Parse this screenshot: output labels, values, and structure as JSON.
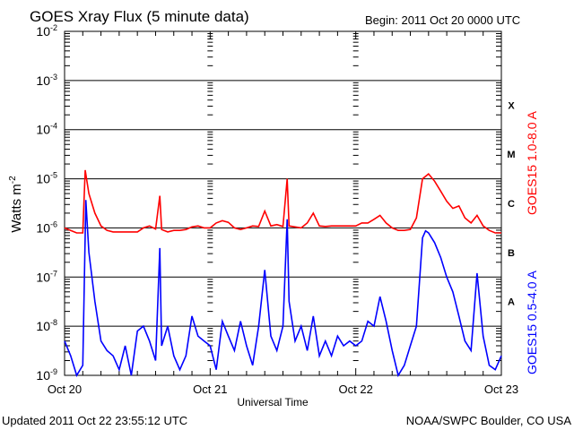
{
  "chart_data": {
    "type": "line",
    "title": "GOES Xray Flux (5 minute data)",
    "begin_label": "Begin:  2011 Oct 20 0000 UTC",
    "xlabel": "Universal Time",
    "ylabel": "Watts m",
    "ylabel_superscript": "-2",
    "y_scale": "log",
    "ylim": [
      1e-09,
      0.01
    ],
    "y_ticks": [
      {
        "value": 0.01,
        "mant": "10",
        "exp": "-2"
      },
      {
        "value": 0.001,
        "mant": "10",
        "exp": "-3"
      },
      {
        "value": 0.0001,
        "mant": "10",
        "exp": "-4"
      },
      {
        "value": 1e-05,
        "mant": "10",
        "exp": "-5"
      },
      {
        "value": 1e-06,
        "mant": "10",
        "exp": "-6"
      },
      {
        "value": 1e-07,
        "mant": "10",
        "exp": "-7"
      },
      {
        "value": 1e-08,
        "mant": "10",
        "exp": "-8"
      },
      {
        "value": 1e-09,
        "mant": "10",
        "exp": "-9"
      }
    ],
    "x_unit": "hours since 2011 Oct 20 0000 UTC",
    "xlim": [
      0,
      72
    ],
    "x_ticks": [
      {
        "value": 0,
        "label": "Oct 20"
      },
      {
        "value": 24,
        "label": "Oct 21"
      },
      {
        "value": 48,
        "label": "Oct 22"
      },
      {
        "value": 72,
        "label": "Oct 23"
      }
    ],
    "grid": "horizontal lines at decades",
    "flare_classes": [
      {
        "label": "X",
        "low": 0.0001
      },
      {
        "label": "M",
        "low": 1e-05
      },
      {
        "label": "C",
        "low": 1e-06
      },
      {
        "label": "B",
        "low": 1e-07
      },
      {
        "label": "A",
        "low": 1e-08
      }
    ],
    "series": [
      {
        "name": "GOES15 1.0-8.0 A",
        "color": "#ff0000",
        "points": [
          [
            0,
            1e-06
          ],
          [
            1,
            8.9e-07
          ],
          [
            2,
            7.9e-07
          ],
          [
            3,
            7.9e-07
          ],
          [
            3.4,
            1.5e-05
          ],
          [
            4,
            5e-06
          ],
          [
            5,
            2e-06
          ],
          [
            6,
            1.1e-06
          ],
          [
            7,
            8.9e-07
          ],
          [
            8,
            8.3e-07
          ],
          [
            9,
            8.3e-07
          ],
          [
            10,
            8.3e-07
          ],
          [
            11,
            8.3e-07
          ],
          [
            12,
            8.3e-07
          ],
          [
            13,
            1e-06
          ],
          [
            14,
            1.1e-06
          ],
          [
            15,
            9.5e-07
          ],
          [
            15.7,
            4.5e-06
          ],
          [
            16,
            9.3e-07
          ],
          [
            17,
            8.3e-07
          ],
          [
            18,
            8.9e-07
          ],
          [
            19,
            8.9e-07
          ],
          [
            20,
            9.3e-07
          ],
          [
            21,
            1.05e-06
          ],
          [
            22,
            1.1e-06
          ],
          [
            23,
            1e-06
          ],
          [
            24,
            1e-06
          ],
          [
            25,
            1.26e-06
          ],
          [
            26,
            1.4e-06
          ],
          [
            27,
            1.3e-06
          ],
          [
            28,
            1e-06
          ],
          [
            29,
            9.3e-07
          ],
          [
            30,
            1e-06
          ],
          [
            31,
            1.1e-06
          ],
          [
            32,
            1.07e-06
          ],
          [
            33,
            2.2e-06
          ],
          [
            34,
            1.1e-06
          ],
          [
            35,
            1.17e-06
          ],
          [
            36,
            1.07e-06
          ],
          [
            36.7,
            1e-05
          ],
          [
            37,
            1.1e-06
          ],
          [
            38,
            1.05e-06
          ],
          [
            39,
            1e-06
          ],
          [
            40,
            1.26e-06
          ],
          [
            41,
            2e-06
          ],
          [
            42,
            1.1e-06
          ],
          [
            43,
            1.07e-06
          ],
          [
            44,
            1.1e-06
          ],
          [
            45,
            1.1e-06
          ],
          [
            46,
            1.1e-06
          ],
          [
            47,
            1.1e-06
          ],
          [
            48,
            1.1e-06
          ],
          [
            49,
            1.26e-06
          ],
          [
            50,
            1.26e-06
          ],
          [
            51,
            1.5e-06
          ],
          [
            52,
            1.8e-06
          ],
          [
            53,
            1.26e-06
          ],
          [
            54,
            1e-06
          ],
          [
            55,
            8.9e-07
          ],
          [
            56,
            8.9e-07
          ],
          [
            57,
            9.3e-07
          ],
          [
            58,
            1.6e-06
          ],
          [
            59,
            1e-05
          ],
          [
            60,
            1.26e-05
          ],
          [
            61,
            8.9e-06
          ],
          [
            62,
            5.6e-06
          ],
          [
            63,
            3.5e-06
          ],
          [
            64,
            2.5e-06
          ],
          [
            65,
            2.8e-06
          ],
          [
            66,
            1.6e-06
          ],
          [
            67,
            1.26e-06
          ],
          [
            68,
            1.8e-06
          ],
          [
            69,
            1.1e-06
          ],
          [
            70,
            8.9e-07
          ],
          [
            71,
            7.9e-07
          ],
          [
            72,
            7.9e-07
          ]
        ]
      },
      {
        "name": "GOES15 0.5-4.0 A",
        "color": "#0000ff",
        "points": [
          [
            0,
            5e-09
          ],
          [
            1,
            2.5e-09
          ],
          [
            2,
            1e-09
          ],
          [
            3,
            1.6e-09
          ],
          [
            3.5,
            3.7e-06
          ],
          [
            4,
            3.2e-07
          ],
          [
            5,
            3.2e-08
          ],
          [
            6,
            5e-09
          ],
          [
            7,
            3.2e-09
          ],
          [
            8,
            2.5e-09
          ],
          [
            9,
            1.3e-09
          ],
          [
            10,
            4e-09
          ],
          [
            11,
            1e-09
          ],
          [
            12,
            8e-09
          ],
          [
            13,
            1e-08
          ],
          [
            14,
            5e-09
          ],
          [
            15,
            2e-09
          ],
          [
            15.7,
            3.9e-07
          ],
          [
            16,
            4e-09
          ],
          [
            17,
            1e-08
          ],
          [
            18,
            2.5e-09
          ],
          [
            19,
            1.3e-09
          ],
          [
            20,
            2.5e-09
          ],
          [
            21,
            1.6e-08
          ],
          [
            22,
            6.3e-09
          ],
          [
            23,
            5e-09
          ],
          [
            24,
            4e-09
          ],
          [
            25,
            1.3e-09
          ],
          [
            26,
            1.26e-08
          ],
          [
            27,
            6.3e-09
          ],
          [
            28,
            3.2e-09
          ],
          [
            29,
            1.26e-08
          ],
          [
            30,
            4e-09
          ],
          [
            31,
            1.6e-09
          ],
          [
            32,
            1e-08
          ],
          [
            33,
            1.4e-07
          ],
          [
            34,
            6.3e-09
          ],
          [
            35,
            3.2e-09
          ],
          [
            36,
            1e-08
          ],
          [
            36.7,
            1.5e-06
          ],
          [
            37,
            3.2e-08
          ],
          [
            38,
            5e-09
          ],
          [
            39,
            1e-08
          ],
          [
            40,
            3.2e-09
          ],
          [
            41,
            1.6e-08
          ],
          [
            42,
            2.5e-09
          ],
          [
            43,
            5e-09
          ],
          [
            44,
            2.5e-09
          ],
          [
            45,
            6.3e-09
          ],
          [
            46,
            4e-09
          ],
          [
            47,
            5e-09
          ],
          [
            48,
            4e-09
          ],
          [
            49,
            5e-09
          ],
          [
            50,
            1.26e-08
          ],
          [
            51,
            1e-08
          ],
          [
            52,
            4e-08
          ],
          [
            53,
            1.26e-08
          ],
          [
            54,
            3.2e-09
          ],
          [
            55,
            1e-09
          ],
          [
            56,
            1.6e-09
          ],
          [
            57,
            4e-09
          ],
          [
            58,
            1e-08
          ],
          [
            59,
            6.3e-07
          ],
          [
            59.5,
            8.7e-07
          ],
          [
            60,
            7.9e-07
          ],
          [
            61,
            5e-07
          ],
          [
            62,
            2.5e-07
          ],
          [
            63,
            1e-07
          ],
          [
            64,
            5e-08
          ],
          [
            65,
            1.6e-08
          ],
          [
            66,
            5e-09
          ],
          [
            67,
            3.2e-09
          ],
          [
            68,
            1.2e-07
          ],
          [
            69,
            6.3e-09
          ],
          [
            70,
            1.6e-09
          ],
          [
            71,
            1.3e-09
          ],
          [
            72,
            2.5e-09
          ]
        ]
      }
    ]
  },
  "footer": {
    "updated": "Updated 2011 Oct 22 23:55:12 UTC",
    "credit": "NOAA/SWPC Boulder, CO USA"
  }
}
